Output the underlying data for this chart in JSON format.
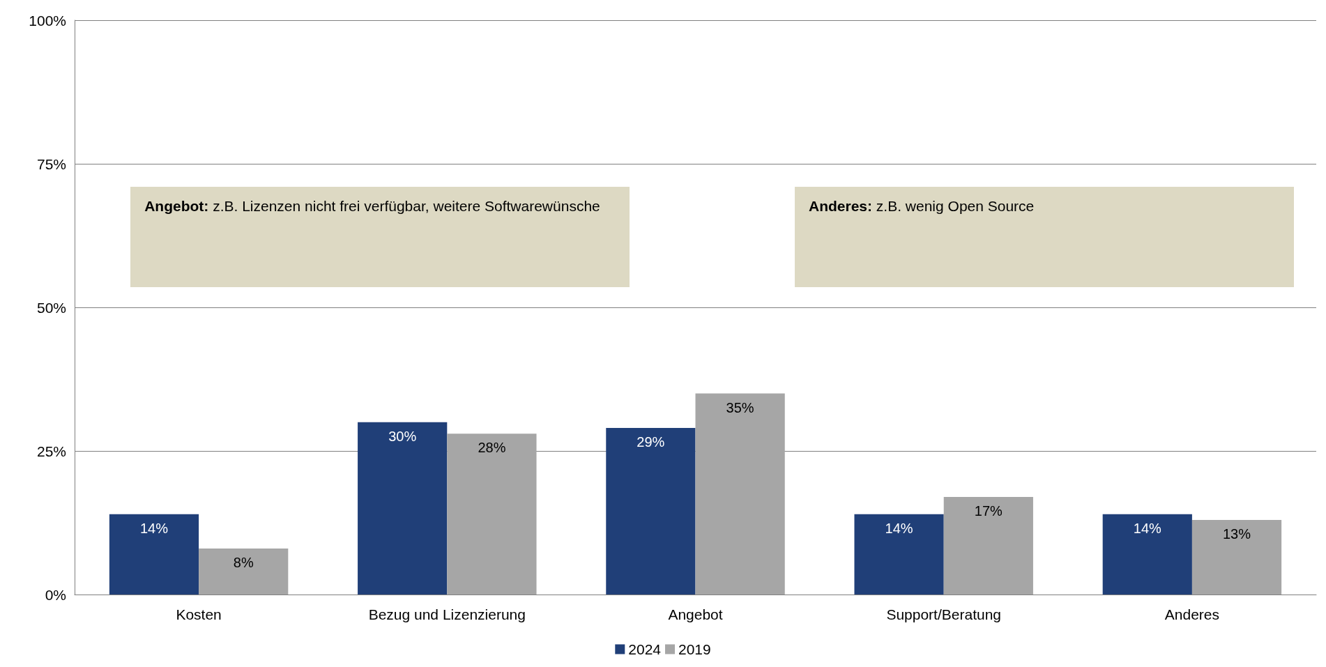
{
  "chart_data": {
    "type": "bar",
    "categories": [
      "Kosten",
      "Bezug und Lizenzierung",
      "Angebot",
      "Support/Beratung",
      "Anderes"
    ],
    "series": [
      {
        "name": "2024",
        "color": "#203f78",
        "values": [
          14,
          30,
          29,
          14,
          14
        ],
        "value_labels": [
          "14%",
          "30%",
          "29%",
          "14%",
          "14%"
        ]
      },
      {
        "name": "2019",
        "color": "#a6a6a6",
        "values": [
          8,
          28,
          35,
          17,
          13
        ],
        "value_labels": [
          "8%",
          "28%",
          "35%",
          "17%",
          "13%"
        ]
      }
    ],
    "ylim": [
      0,
      100
    ],
    "yticks": [
      {
        "value": 0,
        "label": "0%"
      },
      {
        "value": 25,
        "label": "25%"
      },
      {
        "value": 50,
        "label": "50%"
      },
      {
        "value": 75,
        "label": "75%"
      },
      {
        "value": 100,
        "label": "100%"
      }
    ],
    "grid": "y",
    "legend": "bottom",
    "annotations": [
      "Angebot: z.B. Lizenzen nicht frei verfügbar, weitere Softwarewünsche",
      "Anderes: z.B. wenig Open Source"
    ]
  }
}
